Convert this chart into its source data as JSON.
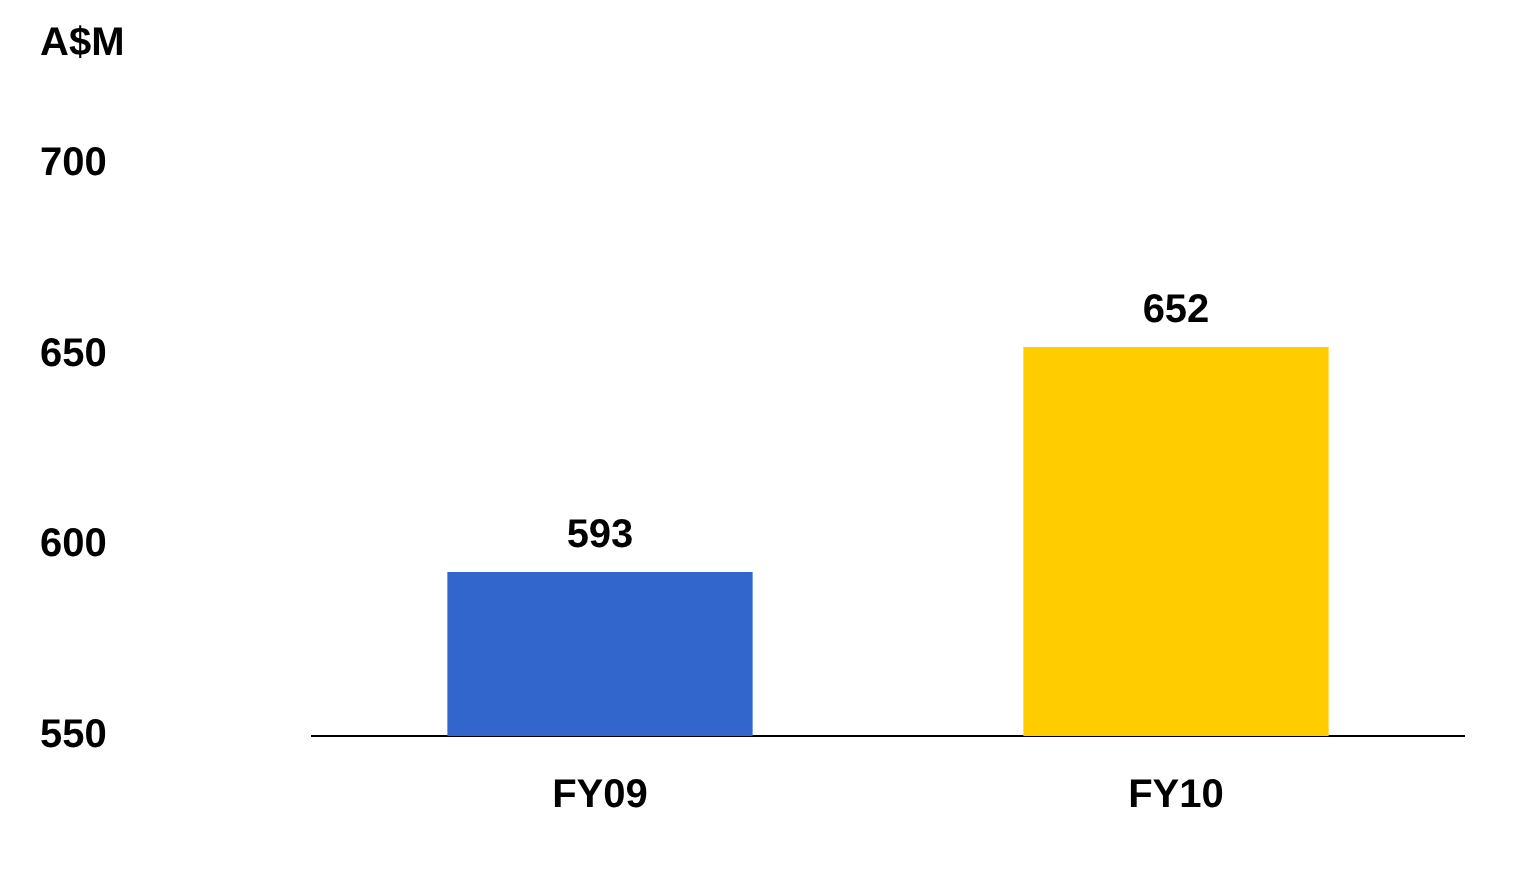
{
  "chart_data": {
    "type": "bar",
    "ylabel": "A$M",
    "categories": [
      "FY09",
      "FY10"
    ],
    "values": [
      593,
      652
    ],
    "colors": [
      "#3366cc",
      "#ffcc00"
    ],
    "ylim": [
      550,
      700
    ],
    "yticks": [
      550,
      600,
      650,
      700
    ],
    "data_labels": true,
    "grid": false,
    "legend": false
  }
}
